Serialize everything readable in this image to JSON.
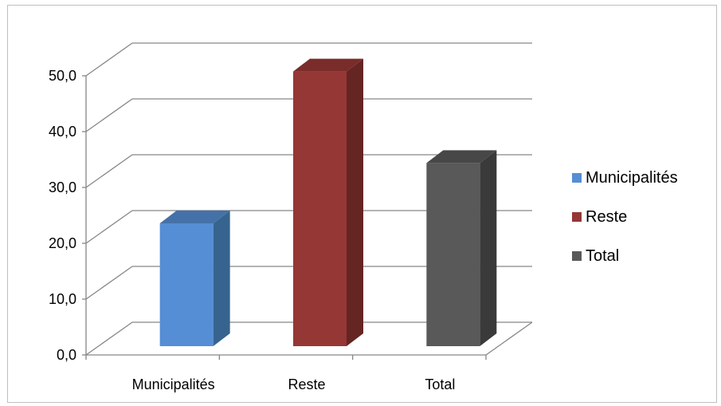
{
  "chart_data": {
    "type": "bar",
    "categories": [
      "Municipalités",
      "Reste",
      "Total"
    ],
    "values": [
      22.0,
      49.2,
      32.8
    ],
    "ylim": [
      0,
      50
    ],
    "yticks": [
      "0,0",
      "10,0",
      "20,0",
      "30,0",
      "40,0",
      "50,0"
    ],
    "grid": true,
    "legend_position": "right",
    "legend": [
      "Municipalités",
      "Reste",
      "Total"
    ],
    "colors": [
      "#558ED5",
      "#953735",
      "#595959"
    ],
    "side_colors": [
      "#36648F",
      "#652523",
      "#3A3A3A"
    ],
    "top_colors": [
      "#4472A8",
      "#7A2C2A",
      "#474747"
    ],
    "projection": "3d-perspective"
  }
}
